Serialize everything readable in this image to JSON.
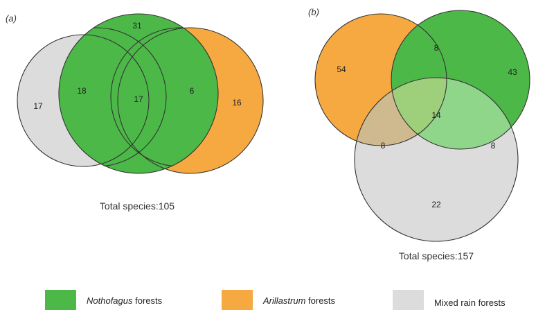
{
  "colors": {
    "nothofagus": "#4cb848",
    "arillastrum": "#f7a941",
    "mixed": "#dcdcdc",
    "stroke": "#333333",
    "overlap_na": "#cfb98e",
    "overlap_nm": "#8fd68a",
    "overlap_all": "#9ed07b"
  },
  "panel_a": {
    "label": "a",
    "regions": {
      "mixed_only": "17",
      "notho_top": "31",
      "mixed_notho": "18",
      "center": "17",
      "notho_arill": "6",
      "arill_only": "16"
    },
    "total": "Total species:105"
  },
  "panel_b": {
    "label": "b",
    "regions": {
      "arill_only": "54",
      "arill_notho": "8",
      "notho_only": "43",
      "center": "14",
      "arill_mixed": "8",
      "notho_mixed": "8",
      "mixed_only": "22"
    },
    "total": "Total species:157"
  },
  "legend": {
    "nothofagus": {
      "italic": "Nothofagus",
      "rest": " forests"
    },
    "arillastrum": {
      "italic": "Arillastrum",
      "rest": " forests"
    },
    "mixed": {
      "label": "Mixed rain forests"
    }
  }
}
